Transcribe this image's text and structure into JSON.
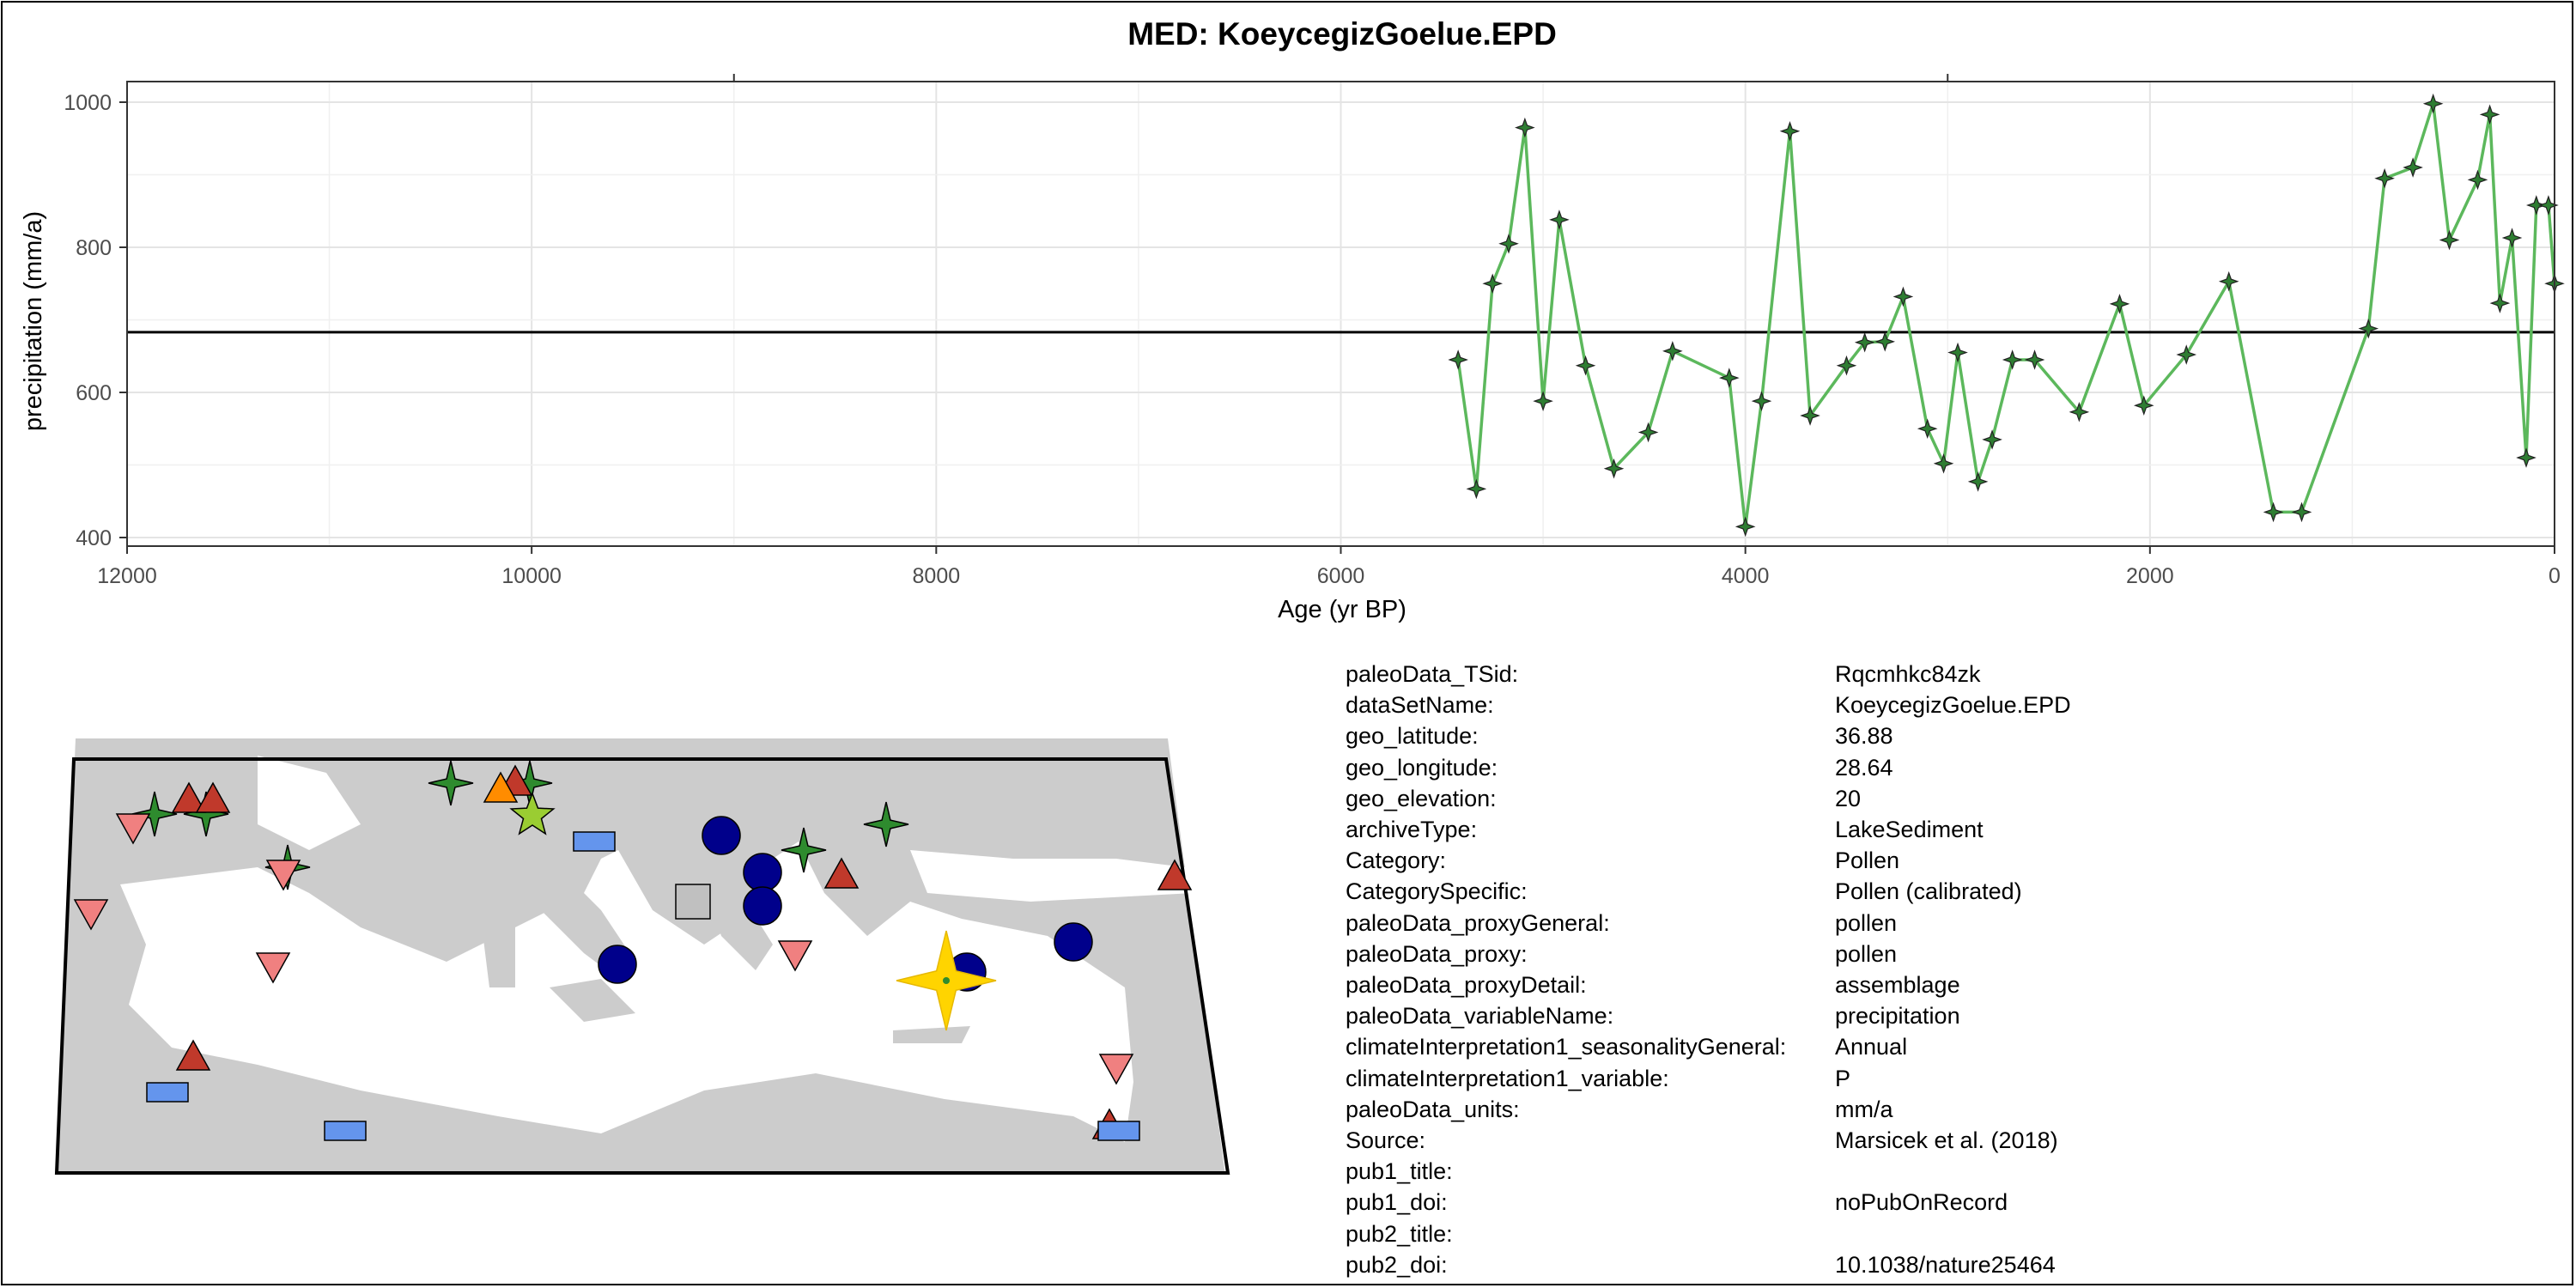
{
  "chart_data": {
    "type": "line",
    "title": "MED: KoeycegizGoelue.EPD",
    "xlabel": "Age (yr BP)",
    "ylabel": "precipitation (mm/a)",
    "xlim": [
      12000,
      0
    ],
    "ylim": [
      400,
      1000
    ],
    "x_reversed": true,
    "x_ticks": [
      12000,
      10000,
      8000,
      6000,
      4000,
      2000,
      0
    ],
    "y_ticks": [
      400,
      600,
      800,
      1000
    ],
    "reference_line": 683,
    "grid": true,
    "series": [
      {
        "color": "#5cb85c",
        "marker_color": "#2e7d32",
        "points": [
          [
            5420,
            645
          ],
          [
            5330,
            467
          ],
          [
            5250,
            750
          ],
          [
            5170,
            805
          ],
          [
            5090,
            965
          ],
          [
            5000,
            588
          ],
          [
            4920,
            838
          ],
          [
            4790,
            637
          ],
          [
            4650,
            495
          ],
          [
            4480,
            545
          ],
          [
            4360,
            657
          ],
          [
            4080,
            620
          ],
          [
            4000,
            415
          ],
          [
            3920,
            588
          ],
          [
            3780,
            960
          ],
          [
            3680,
            568
          ],
          [
            3500,
            637
          ],
          [
            3410,
            669
          ],
          [
            3310,
            670
          ],
          [
            3220,
            732
          ],
          [
            3100,
            550
          ],
          [
            3020,
            502
          ],
          [
            2950,
            655
          ],
          [
            2850,
            477
          ],
          [
            2780,
            535
          ],
          [
            2680,
            645
          ],
          [
            2570,
            645
          ],
          [
            2350,
            573
          ],
          [
            2150,
            722
          ],
          [
            2030,
            582
          ],
          [
            1820,
            652
          ],
          [
            1610,
            753
          ],
          [
            1390,
            435
          ],
          [
            1250,
            435
          ],
          [
            920,
            688
          ],
          [
            840,
            895
          ],
          [
            700,
            910
          ],
          [
            600,
            998
          ],
          [
            520,
            810
          ],
          [
            380,
            893
          ],
          [
            320,
            983
          ],
          [
            270,
            723
          ],
          [
            210,
            813
          ],
          [
            140,
            510
          ],
          [
            90,
            858
          ],
          [
            30,
            858
          ],
          [
            0,
            750
          ]
        ]
      }
    ]
  },
  "map": {
    "land_color": "#cccccc",
    "highlight_color": "#ffd400",
    "markers": [
      {
        "shape": "star4",
        "color": "#2e8b2e"
      },
      {
        "shape": "star4",
        "color": "#2e8b2e"
      },
      {
        "shape": "star4",
        "color": "#2e8b2e"
      },
      {
        "shape": "star4",
        "color": "#2e8b2e"
      },
      {
        "shape": "star4",
        "color": "#2e8b2e"
      },
      {
        "shape": "star4",
        "color": "#2e8b2e"
      },
      {
        "shape": "star4",
        "color": "#2e8b2e"
      },
      {
        "shape": "star4",
        "color": "#2e8b2e"
      },
      {
        "shape": "triangle-up",
        "color": "#c0392b"
      },
      {
        "shape": "triangle-up",
        "color": "#c0392b"
      },
      {
        "shape": "triangle-up",
        "color": "#c0392b"
      },
      {
        "shape": "triangle-up",
        "color": "#c0392b"
      },
      {
        "shape": "triangle-up",
        "color": "#c0392b"
      },
      {
        "shape": "triangle-up",
        "color": "#c0392b"
      },
      {
        "shape": "triangle-up",
        "color": "#c0392b"
      },
      {
        "shape": "triangle-down",
        "color": "#f08080"
      },
      {
        "shape": "triangle-down",
        "color": "#f08080"
      },
      {
        "shape": "triangle-down",
        "color": "#f08080"
      },
      {
        "shape": "triangle-down",
        "color": "#f08080"
      },
      {
        "shape": "triangle-down",
        "color": "#f08080"
      },
      {
        "shape": "triangle-down",
        "color": "#f08080"
      },
      {
        "shape": "circle",
        "color": "#00008b"
      },
      {
        "shape": "circle",
        "color": "#00008b"
      },
      {
        "shape": "circle",
        "color": "#00008b"
      },
      {
        "shape": "circle",
        "color": "#00008b"
      },
      {
        "shape": "circle",
        "color": "#00008b"
      },
      {
        "shape": "circle",
        "color": "#00008b"
      },
      {
        "shape": "rect",
        "color": "#6495ed"
      },
      {
        "shape": "rect",
        "color": "#6495ed"
      },
      {
        "shape": "rect",
        "color": "#6495ed"
      },
      {
        "shape": "rect",
        "color": "#6495ed"
      },
      {
        "shape": "square",
        "color": "#c0c0c0"
      },
      {
        "shape": "triangle-up",
        "color": "#ff8c00"
      },
      {
        "shape": "star5",
        "color": "#9acd32"
      },
      {
        "shape": "star4-big",
        "color": "#ffd400"
      }
    ]
  },
  "metadata": [
    {
      "key": "paleoData_TSid:",
      "value": "Rqcmhkc84zk"
    },
    {
      "key": "dataSetName:",
      "value": "KoeycegizGoelue.EPD"
    },
    {
      "key": "geo_latitude:",
      "value": "36.88"
    },
    {
      "key": "geo_longitude:",
      "value": "28.64"
    },
    {
      "key": "geo_elevation:",
      "value": "20"
    },
    {
      "key": "archiveType:",
      "value": "LakeSediment"
    },
    {
      "key": "Category:",
      "value": "Pollen"
    },
    {
      "key": "CategorySpecific:",
      "value": "Pollen (calibrated)"
    },
    {
      "key": "paleoData_proxyGeneral:",
      "value": "pollen"
    },
    {
      "key": "paleoData_proxy:",
      "value": "pollen"
    },
    {
      "key": "paleoData_proxyDetail:",
      "value": "assemblage"
    },
    {
      "key": "paleoData_variableName:",
      "value": "precipitation"
    },
    {
      "key": "climateInterpretation1_seasonalityGeneral:",
      "value": "Annual"
    },
    {
      "key": "climateInterpretation1_variable:",
      "value": "P"
    },
    {
      "key": "paleoData_units:",
      "value": "mm/a"
    },
    {
      "key": "Source:",
      "value": "Marsicek et al. (2018)"
    },
    {
      "key": "pub1_title:",
      "value": ""
    },
    {
      "key": "pub1_doi:",
      "value": "noPubOnRecord"
    },
    {
      "key": "pub2_title:",
      "value": ""
    },
    {
      "key": "pub2_doi:",
      "value": "10.1038/nature25464"
    }
  ]
}
